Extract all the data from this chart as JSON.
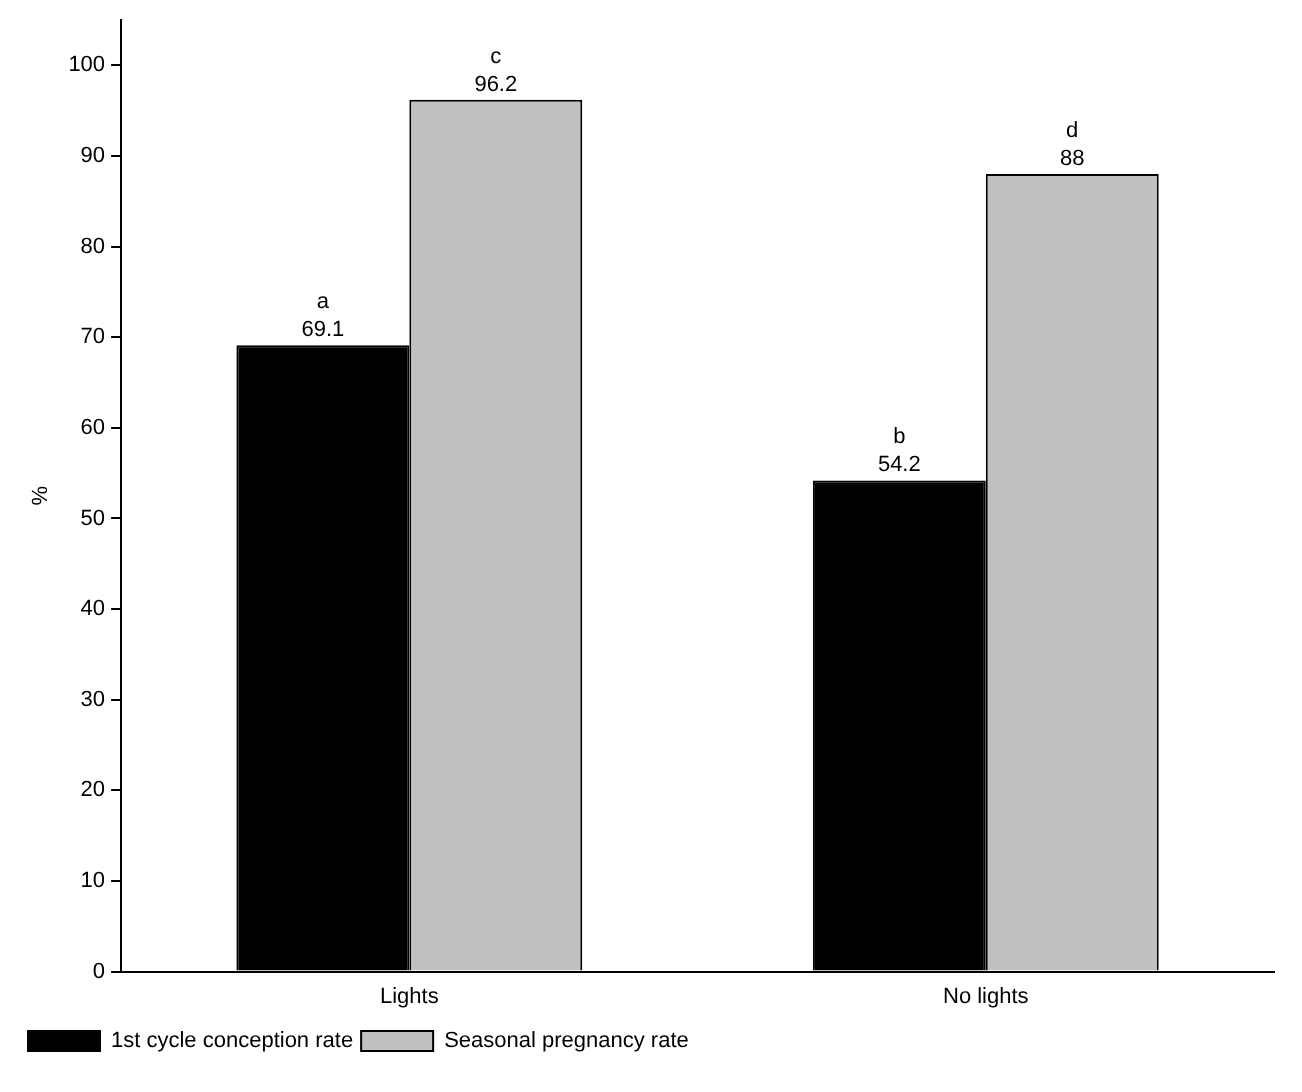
{
  "chart_data": {
    "type": "bar",
    "ylabel": "%",
    "categories": [
      "Lights",
      "No lights"
    ],
    "series": [
      {
        "name": "1st cycle conception rate",
        "color": "#000000",
        "values": [
          69.1,
          54.2
        ],
        "value_labels": [
          "a\n69.1",
          "b\n54.2"
        ]
      },
      {
        "name": "Seasonal pregnancy rate",
        "color": "#c0c0c0",
        "values": [
          96.2,
          88
        ],
        "value_labels": [
          "c\n96.2",
          "d\n88"
        ]
      }
    ],
    "ylim": [
      0,
      105
    ],
    "yticks": [
      0,
      10,
      20,
      30,
      40,
      50,
      60,
      70,
      80,
      90,
      100
    ],
    "grid": false,
    "legend": "bottom left"
  }
}
